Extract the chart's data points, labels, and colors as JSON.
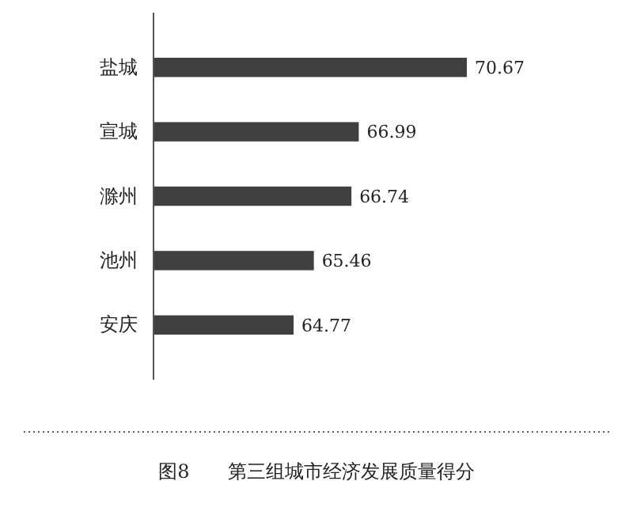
{
  "chart_data": {
    "type": "bar",
    "orientation": "horizontal",
    "title": "图8　　第三组城市经济发展质量得分",
    "categories": [
      "盐城",
      "宣城",
      "滁州",
      "池州",
      "安庆"
    ],
    "values": [
      70.67,
      66.99,
      66.74,
      65.46,
      64.77
    ],
    "color": "#404040",
    "xlim": [
      60,
      70.67
    ],
    "data_labels": true,
    "tick_labels": "y"
  }
}
